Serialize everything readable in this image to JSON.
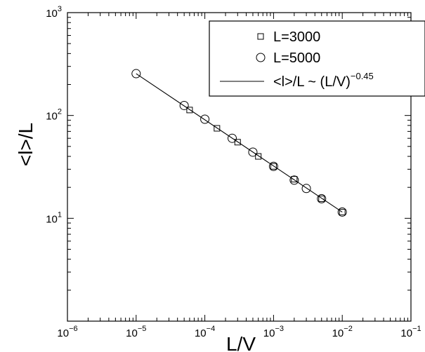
{
  "chart_data": {
    "type": "scatter",
    "xlabel": "L/V",
    "ylabel": "<l>/L",
    "xscale": "log",
    "yscale": "log",
    "xlim": [
      1e-06,
      0.1
    ],
    "ylim": [
      1,
      1000
    ],
    "xticks": [
      {
        "base": "10",
        "exp": "−6",
        "value": 1e-06
      },
      {
        "base": "10",
        "exp": "−5",
        "value": 1e-05
      },
      {
        "base": "10",
        "exp": "−4",
        "value": 0.0001
      },
      {
        "base": "10",
        "exp": "−3",
        "value": 0.001
      },
      {
        "base": "10",
        "exp": "−2",
        "value": 0.01
      },
      {
        "base": "10",
        "exp": "−1",
        "value": 0.1
      }
    ],
    "yticks": [
      {
        "base": "10",
        "exp": "1",
        "value": 10
      },
      {
        "base": "10",
        "exp": "2",
        "value": 100
      },
      {
        "base": "10",
        "exp": "3",
        "value": 1000
      }
    ],
    "legend_position": "top-right",
    "series": [
      {
        "name": "L=3000",
        "marker": "square",
        "x": [
          6e-05,
          0.00015,
          0.0003,
          0.0006,
          0.001,
          0.002,
          0.005,
          0.01
        ],
        "y": [
          113,
          75,
          55,
          40,
          32,
          24,
          15.5,
          11.5
        ]
      },
      {
        "name": "L=5000",
        "marker": "circle",
        "x": [
          1e-05,
          5e-05,
          0.0001,
          0.00025,
          0.0005,
          0.001,
          0.002,
          0.003,
          0.005,
          0.01
        ],
        "y": [
          255,
          125,
          92,
          60,
          44,
          32,
          23.5,
          19.5,
          15.5,
          11.5
        ]
      },
      {
        "name": "<l>/L ~ (L/V)",
        "name_exp": "−0.45",
        "marker": "line",
        "x": [
          1e-05,
          0.01
        ],
        "y": [
          255,
          11.5
        ]
      }
    ]
  }
}
